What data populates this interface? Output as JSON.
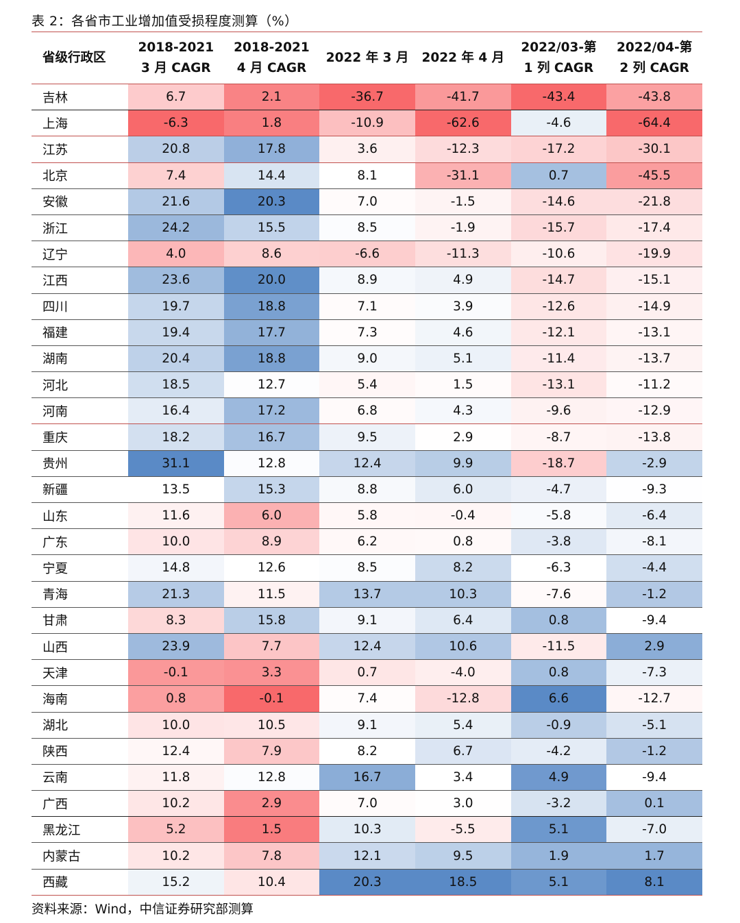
{
  "title": "表 2：各省市工业增加值受损程度测算（%）",
  "source": "资料来源：Wind，中信证券研究部测算",
  "headers": [
    {
      "line1": "省级行政区",
      "line2": ""
    },
    {
      "line1": "2018-2021",
      "line2": "3 月 CAGR"
    },
    {
      "line1": "2018-2021",
      "line2": "4 月 CAGR"
    },
    {
      "line1": "2022 年 3 月",
      "line2": ""
    },
    {
      "line1": "2022 年 4 月",
      "line2": ""
    },
    {
      "line1": "2022/03-第",
      "line2": "1 列 CAGR"
    },
    {
      "line1": "2022/04-第",
      "line2": "2 列 CAGR"
    }
  ],
  "rows": [
    {
      "province": "吉林",
      "values": [
        "6.7",
        "2.1",
        "-36.7",
        "-41.7",
        "-43.4",
        "-43.8"
      ]
    },
    {
      "province": "上海",
      "values": [
        "-6.3",
        "1.8",
        "-10.9",
        "-62.6",
        "-4.6",
        "-64.4"
      ]
    },
    {
      "province": "江苏",
      "values": [
        "20.8",
        "17.8",
        "3.6",
        "-12.3",
        "-17.2",
        "-30.1"
      ]
    },
    {
      "province": "北京",
      "values": [
        "7.4",
        "14.4",
        "8.1",
        "-31.1",
        "0.7",
        "-45.5"
      ]
    },
    {
      "province": "安徽",
      "values": [
        "21.6",
        "20.3",
        "7.0",
        "-1.5",
        "-14.6",
        "-21.8"
      ]
    },
    {
      "province": "浙江",
      "values": [
        "24.2",
        "15.5",
        "8.5",
        "-1.9",
        "-15.7",
        "-17.4"
      ]
    },
    {
      "province": "辽宁",
      "values": [
        "4.0",
        "8.6",
        "-6.6",
        "-11.3",
        "-10.6",
        "-19.9"
      ]
    },
    {
      "province": "江西",
      "values": [
        "23.6",
        "20.0",
        "8.9",
        "4.9",
        "-14.7",
        "-15.1"
      ]
    },
    {
      "province": "四川",
      "values": [
        "19.7",
        "18.8",
        "7.1",
        "3.9",
        "-12.6",
        "-14.9"
      ]
    },
    {
      "province": "福建",
      "values": [
        "19.4",
        "17.7",
        "7.3",
        "4.6",
        "-12.1",
        "-13.1"
      ]
    },
    {
      "province": "湖南",
      "values": [
        "20.4",
        "18.8",
        "9.0",
        "5.1",
        "-11.4",
        "-13.7"
      ]
    },
    {
      "province": "河北",
      "values": [
        "18.5",
        "12.7",
        "5.4",
        "1.5",
        "-13.1",
        "-11.2"
      ]
    },
    {
      "province": "河南",
      "values": [
        "16.4",
        "17.2",
        "6.8",
        "4.3",
        "-9.6",
        "-12.9"
      ]
    },
    {
      "province": "重庆",
      "values": [
        "18.2",
        "16.7",
        "9.5",
        "2.9",
        "-8.7",
        "-13.8"
      ]
    },
    {
      "province": "贵州",
      "values": [
        "31.1",
        "12.8",
        "12.4",
        "9.9",
        "-18.7",
        "-2.9"
      ]
    },
    {
      "province": "新疆",
      "values": [
        "13.5",
        "15.3",
        "8.8",
        "6.0",
        "-4.7",
        "-9.3"
      ]
    },
    {
      "province": "山东",
      "values": [
        "11.6",
        "6.0",
        "5.8",
        "-0.4",
        "-5.8",
        "-6.4"
      ]
    },
    {
      "province": "广东",
      "values": [
        "10.0",
        "8.9",
        "6.2",
        "0.8",
        "-3.8",
        "-8.1"
      ]
    },
    {
      "province": "宁夏",
      "values": [
        "14.8",
        "12.6",
        "8.5",
        "8.2",
        "-6.3",
        "-4.4"
      ]
    },
    {
      "province": "青海",
      "values": [
        "21.3",
        "11.5",
        "13.7",
        "10.3",
        "-7.6",
        "-1.2"
      ]
    },
    {
      "province": "甘肃",
      "values": [
        "8.3",
        "15.8",
        "9.1",
        "6.4",
        "0.8",
        "-9.4"
      ]
    },
    {
      "province": "山西",
      "values": [
        "23.9",
        "7.7",
        "12.4",
        "10.6",
        "-11.5",
        "2.9"
      ]
    },
    {
      "province": "天津",
      "values": [
        "-0.1",
        "3.3",
        "0.7",
        "-4.0",
        "0.8",
        "-7.3"
      ]
    },
    {
      "province": "海南",
      "values": [
        "0.8",
        "-0.1",
        "7.4",
        "-12.8",
        "6.6",
        "-12.7"
      ]
    },
    {
      "province": "湖北",
      "values": [
        "10.0",
        "10.5",
        "9.1",
        "5.4",
        "-0.9",
        "-5.1"
      ]
    },
    {
      "province": "陕西",
      "values": [
        "12.4",
        "7.9",
        "8.2",
        "6.7",
        "-4.2",
        "-1.2"
      ]
    },
    {
      "province": "云南",
      "values": [
        "11.8",
        "12.8",
        "16.7",
        "3.4",
        "4.9",
        "-9.4"
      ]
    },
    {
      "province": "广西",
      "values": [
        "10.2",
        "2.9",
        "7.0",
        "3.0",
        "-3.2",
        "0.1"
      ]
    },
    {
      "province": "黑龙江",
      "values": [
        "5.2",
        "1.5",
        "10.3",
        "-5.5",
        "5.1",
        "-7.0"
      ]
    },
    {
      "province": "内蒙古",
      "values": [
        "10.2",
        "7.8",
        "12.1",
        "9.5",
        "1.9",
        "1.7"
      ]
    },
    {
      "province": "西藏",
      "values": [
        "15.2",
        "10.4",
        "20.3",
        "18.5",
        "5.1",
        "8.1"
      ]
    }
  ],
  "row_separators": {
    "red_after": [
      "上海",
      "江苏",
      "河南"
    ],
    "black_after": [
      "吉林",
      "广西"
    ]
  },
  "colors": {
    "red": "#f8696b",
    "white": "#ffffff",
    "blue": "#5a8ac6",
    "accent_line": "#c0504d"
  }
}
